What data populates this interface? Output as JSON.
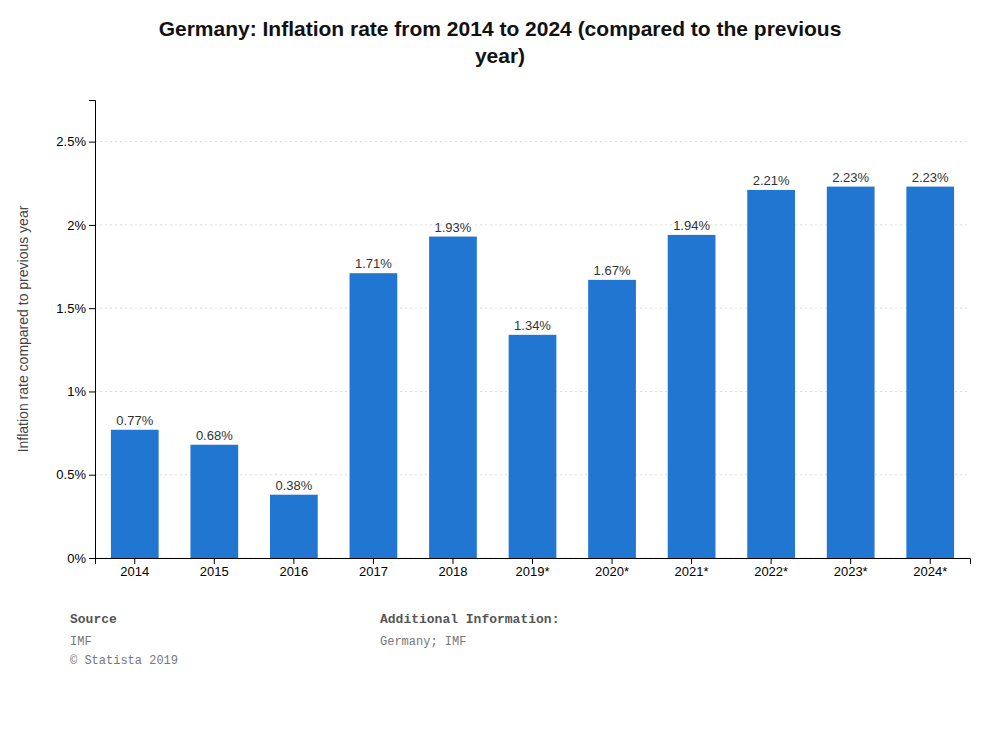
{
  "chart_data": {
    "type": "bar",
    "title": "Germany: Inflation rate from 2014 to 2024 (compared to the previous\nyear)",
    "ylabel": "Inflation rate compared to previous year",
    "categories": [
      "2014",
      "2015",
      "2016",
      "2017",
      "2018",
      "2019*",
      "2020*",
      "2021*",
      "2022*",
      "2023*",
      "2024*"
    ],
    "values": [
      0.0077,
      0.0068,
      0.0038,
      0.0171,
      0.0193,
      0.0134,
      0.0167,
      0.0194,
      0.0221,
      0.0223,
      0.0223
    ],
    "value_labels": [
      "0.77%",
      "0.68%",
      "0.38%",
      "1.71%",
      "1.93%",
      "1.34%",
      "1.67%",
      "1.94%",
      "2.21%",
      "2.23%",
      "2.23%"
    ],
    "data_labels": true,
    "color": "#2176d2",
    "ylim": [
      0,
      0.0275
    ],
    "yticks": [
      {
        "value": 0.0,
        "label": "0%"
      },
      {
        "value": 0.005,
        "label": "0.5%"
      },
      {
        "value": 0.01,
        "label": "1%"
      },
      {
        "value": 0.015,
        "label": "1.5%"
      },
      {
        "value": 0.02,
        "label": "2%"
      },
      {
        "value": 0.025,
        "label": "2.5%"
      }
    ],
    "grid": true,
    "annotations": [
      {
        "heading": "Source",
        "text": "IMF\n© Statista 2019"
      },
      {
        "heading": "Additional Information:",
        "text": "Germany; IMF"
      }
    ]
  }
}
